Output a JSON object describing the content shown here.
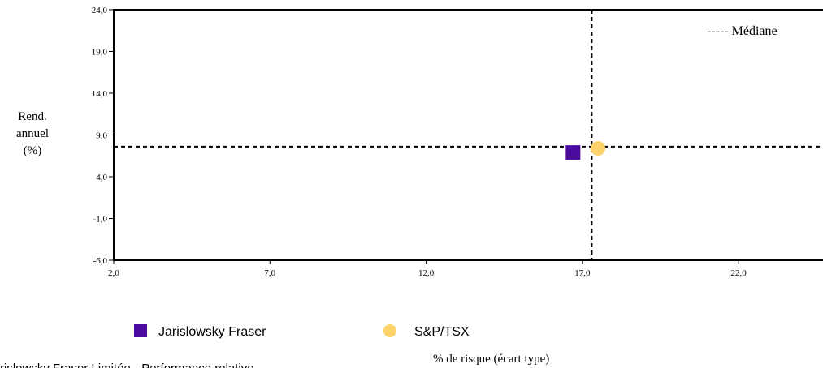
{
  "chart_data": {
    "type": "scatter",
    "xlabel": "% de risque (écart type)",
    "ylabel_lines": [
      "Rend.",
      "annuel",
      "(%)"
    ],
    "x_ticks": [
      "2,0",
      "7,0",
      "12,0",
      "17,0",
      "22,0"
    ],
    "y_ticks": [
      "-6,0",
      "-1,0",
      "4,0",
      "9,0",
      "14,0",
      "19,0",
      "24,0"
    ],
    "xlim": [
      2,
      24.7
    ],
    "ylim": [
      -6,
      24
    ],
    "median": {
      "label": "----- Médiane",
      "x": 17.3,
      "y": 7.6
    },
    "series": [
      {
        "name": "Jarislowsky Fraser",
        "marker": "square",
        "color": "#4b0b9c",
        "x": 16.7,
        "y": 6.9
      },
      {
        "name": "S&P/TSX",
        "marker": "circle",
        "color": "#ffd36b",
        "x": 17.5,
        "y": 7.4
      }
    ],
    "grid": false
  },
  "footer": {
    "left_text": "rislowsky Fraser Limitée - Performance relative"
  }
}
